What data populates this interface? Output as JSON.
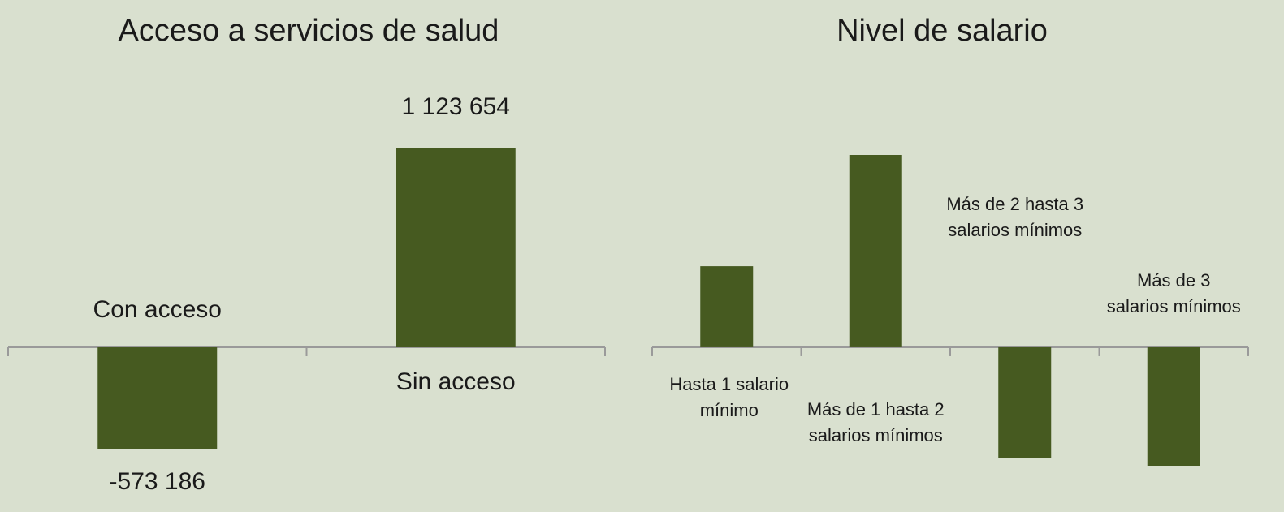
{
  "chart_data": [
    {
      "type": "bar",
      "title": "Acceso a servicios de salud",
      "categories": [
        [
          "Con acceso"
        ],
        [
          "Sin acceso"
        ]
      ],
      "values": [
        -573186,
        1123654
      ],
      "value_labels": [
        "-573 186",
        "1 123 654"
      ],
      "color": "#465a20"
    },
    {
      "type": "bar",
      "title": "Nivel de salario",
      "categories": [
        [
          "Hasta 1 salario",
          "mínimo"
        ],
        [
          "Más de 1 hasta 2",
          "salarios mínimos"
        ],
        [
          "Más de 2 hasta 3",
          "salarios mínimos"
        ],
        [
          "Más de 3",
          "salarios mínimos"
        ]
      ],
      "values": [
        458000,
        1087000,
        -628000,
        -670000
      ],
      "color": "#465a20"
    }
  ]
}
